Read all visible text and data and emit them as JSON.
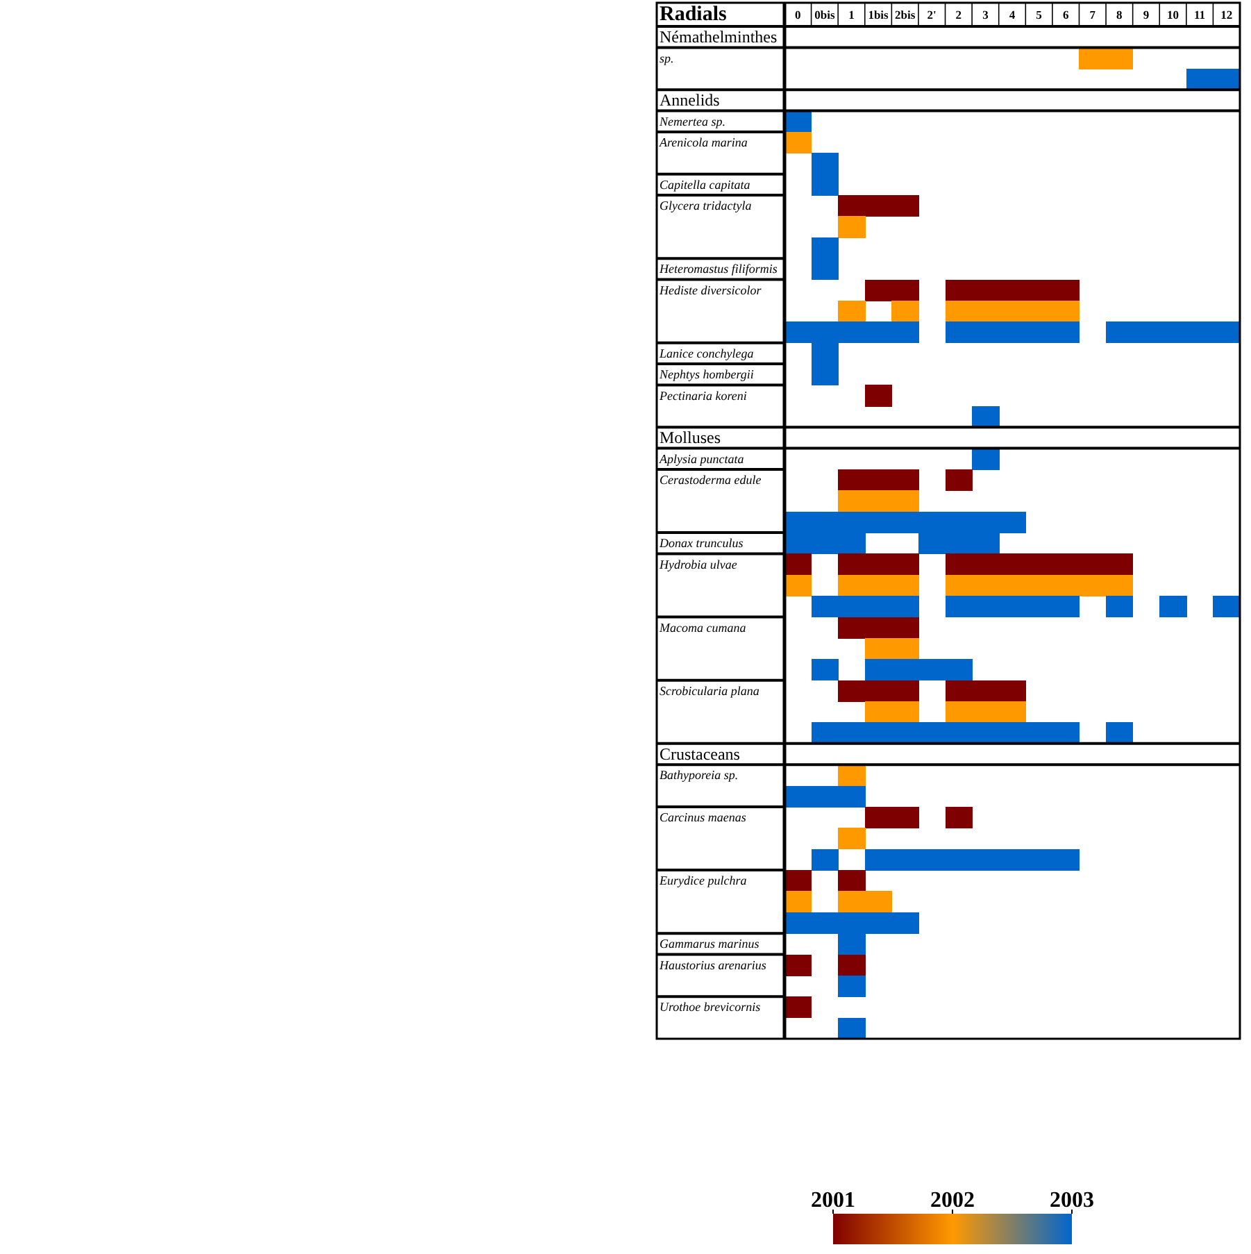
{
  "chart_data": {
    "type": "heatmap",
    "xlabel": "Radials",
    "categories": [
      "0",
      "0bis",
      "1",
      "1bis",
      "2bis",
      "2'",
      "2",
      "3",
      "4",
      "5",
      "6",
      "7",
      "8",
      "9",
      "10",
      "11",
      "12"
    ],
    "y_categories": [
      "Némathelminthes",
      "sp.",
      null,
      "Annelids",
      "Nemertea sp.",
      "Arenicola marina",
      null,
      "Capitella capitata",
      "Glycera tridactyla",
      null,
      null,
      "Heteromastus filiformis",
      "Hediste diversicolor",
      null,
      null,
      "Lanice conchylega",
      "Nephtys hombergii",
      "Pectinaria koreni",
      null,
      "Molluses",
      "Aplysia punctata",
      "Cerastoderma edule",
      null,
      null,
      "Donax trunculus",
      "Hydrobia ulvae",
      null,
      null,
      "Macoma cumana",
      null,
      null,
      "Scrobicularia plana",
      null,
      null,
      "Crustaceans",
      "Bathyporeia sp.",
      null,
      "Carcinus maenas",
      null,
      null,
      "Eurydice pulchra",
      null,
      null,
      "Gammarus marinus",
      "Haustorius arenarius",
      null,
      "Urothoe brevicornis",
      null
    ],
    "cells": [
      [
        null,
        null,
        null,
        null,
        null,
        null,
        null,
        null,
        null,
        null,
        null,
        null,
        null,
        null,
        null,
        null,
        null
      ],
      [
        null,
        null,
        null,
        null,
        null,
        null,
        null,
        null,
        null,
        null,
        null,
        2002,
        2002,
        null,
        null,
        null,
        null
      ],
      [
        null,
        null,
        null,
        null,
        null,
        null,
        null,
        null,
        null,
        null,
        null,
        null,
        null,
        null,
        null,
        2003,
        2003
      ],
      [
        null,
        null,
        null,
        null,
        null,
        null,
        null,
        null,
        null,
        null,
        null,
        null,
        null,
        null,
        null,
        null,
        null
      ],
      [
        2003,
        null,
        null,
        null,
        null,
        null,
        null,
        null,
        null,
        null,
        null,
        null,
        null,
        null,
        null,
        null,
        null
      ],
      [
        2002,
        null,
        null,
        null,
        null,
        null,
        null,
        null,
        null,
        null,
        null,
        null,
        null,
        null,
        null,
        null,
        null
      ],
      [
        null,
        2003,
        null,
        null,
        null,
        null,
        null,
        null,
        null,
        null,
        null,
        null,
        null,
        null,
        null,
        null,
        null
      ],
      [
        null,
        2003,
        null,
        null,
        null,
        null,
        null,
        null,
        null,
        null,
        null,
        null,
        null,
        null,
        null,
        null,
        null
      ],
      [
        null,
        null,
        2001,
        2001,
        2001,
        null,
        null,
        null,
        null,
        null,
        null,
        null,
        null,
        null,
        null,
        null,
        null
      ],
      [
        null,
        null,
        2002,
        null,
        null,
        null,
        null,
        null,
        null,
        null,
        null,
        null,
        null,
        null,
        null,
        null,
        null
      ],
      [
        null,
        2003,
        null,
        null,
        null,
        null,
        null,
        null,
        null,
        null,
        null,
        null,
        null,
        null,
        null,
        null,
        null
      ],
      [
        null,
        2003,
        null,
        null,
        null,
        null,
        null,
        null,
        null,
        null,
        null,
        null,
        null,
        null,
        null,
        null,
        null
      ],
      [
        null,
        null,
        null,
        2001,
        2001,
        null,
        2001,
        2001,
        2001,
        2001,
        2001,
        null,
        null,
        null,
        null,
        null,
        null
      ],
      [
        null,
        null,
        2002,
        null,
        2002,
        null,
        2002,
        2002,
        2002,
        2002,
        2002,
        null,
        null,
        null,
        null,
        null,
        null
      ],
      [
        2003,
        2003,
        2003,
        2003,
        2003,
        null,
        2003,
        2003,
        2003,
        2003,
        2003,
        null,
        2003,
        2003,
        2003,
        2003,
        2003
      ],
      [
        null,
        2003,
        null,
        null,
        null,
        null,
        null,
        null,
        null,
        null,
        null,
        null,
        null,
        null,
        null,
        null,
        null
      ],
      [
        null,
        2003,
        null,
        null,
        null,
        null,
        null,
        null,
        null,
        null,
        null,
        null,
        null,
        null,
        null,
        null,
        null
      ],
      [
        null,
        null,
        null,
        2001,
        null,
        null,
        null,
        null,
        null,
        null,
        null,
        null,
        null,
        null,
        null,
        null,
        null
      ],
      [
        null,
        null,
        null,
        null,
        null,
        null,
        null,
        2003,
        null,
        null,
        null,
        null,
        null,
        null,
        null,
        null,
        null
      ],
      [
        null,
        null,
        null,
        null,
        null,
        null,
        null,
        null,
        null,
        null,
        null,
        null,
        null,
        null,
        null,
        null,
        null
      ],
      [
        null,
        null,
        null,
        null,
        null,
        null,
        null,
        2003,
        null,
        null,
        null,
        null,
        null,
        null,
        null,
        null,
        null
      ],
      [
        null,
        null,
        2001,
        2001,
        2001,
        null,
        2001,
        null,
        null,
        null,
        null,
        null,
        null,
        null,
        null,
        null,
        null
      ],
      [
        null,
        null,
        2002,
        2002,
        2002,
        null,
        null,
        null,
        null,
        null,
        null,
        null,
        null,
        null,
        null,
        null,
        null
      ],
      [
        2003,
        2003,
        2003,
        2003,
        2003,
        2003,
        2003,
        2003,
        2003,
        null,
        null,
        null,
        null,
        null,
        null,
        null,
        null
      ],
      [
        2003,
        2003,
        2003,
        null,
        null,
        2003,
        2003,
        2003,
        null,
        null,
        null,
        null,
        null,
        null,
        null,
        null,
        null
      ],
      [
        2001,
        null,
        2001,
        2001,
        2001,
        null,
        2001,
        2001,
        2001,
        2001,
        2001,
        2001,
        2001,
        null,
        null,
        null,
        null
      ],
      [
        2002,
        null,
        2002,
        2002,
        2002,
        null,
        2002,
        2002,
        2002,
        2002,
        2002,
        2002,
        2002,
        null,
        null,
        null,
        null
      ],
      [
        null,
        2003,
        2003,
        2003,
        2003,
        null,
        2003,
        2003,
        2003,
        2003,
        2003,
        null,
        2003,
        null,
        2003,
        null,
        2003
      ],
      [
        null,
        null,
        2001,
        2001,
        2001,
        null,
        null,
        null,
        null,
        null,
        null,
        null,
        null,
        null,
        null,
        null,
        null
      ],
      [
        null,
        null,
        null,
        2002,
        2002,
        null,
        null,
        null,
        null,
        null,
        null,
        null,
        null,
        null,
        null,
        null,
        null
      ],
      [
        null,
        2003,
        null,
        2003,
        2003,
        2003,
        2003,
        null,
        null,
        null,
        null,
        null,
        null,
        null,
        null,
        null,
        null
      ],
      [
        null,
        null,
        2001,
        2001,
        2001,
        null,
        2001,
        2001,
        2001,
        null,
        null,
        null,
        null,
        null,
        null,
        null,
        null
      ],
      [
        null,
        null,
        null,
        2002,
        2002,
        null,
        2002,
        2002,
        2002,
        null,
        null,
        null,
        null,
        null,
        null,
        null,
        null
      ],
      [
        null,
        2003,
        2003,
        2003,
        2003,
        2003,
        2003,
        2003,
        2003,
        2003,
        2003,
        null,
        2003,
        null,
        null,
        null,
        null
      ],
      [
        null,
        null,
        null,
        null,
        null,
        null,
        null,
        null,
        null,
        null,
        null,
        null,
        null,
        null,
        null,
        null,
        null
      ],
      [
        null,
        null,
        2002,
        null,
        null,
        null,
        null,
        null,
        null,
        null,
        null,
        null,
        null,
        null,
        null,
        null,
        null
      ],
      [
        2003,
        2003,
        2003,
        null,
        null,
        null,
        null,
        null,
        null,
        null,
        null,
        null,
        null,
        null,
        null,
        null,
        null
      ],
      [
        null,
        null,
        null,
        2001,
        2001,
        null,
        2001,
        null,
        null,
        null,
        null,
        null,
        null,
        null,
        null,
        null,
        null
      ],
      [
        null,
        null,
        2002,
        null,
        null,
        null,
        null,
        null,
        null,
        null,
        null,
        null,
        null,
        null,
        null,
        null,
        null
      ],
      [
        null,
        2003,
        null,
        2003,
        2003,
        2003,
        2003,
        2003,
        2003,
        2003,
        2003,
        null,
        null,
        null,
        null,
        null,
        null
      ],
      [
        2001,
        null,
        2001,
        null,
        null,
        null,
        null,
        null,
        null,
        null,
        null,
        null,
        null,
        null,
        null,
        null,
        null
      ],
      [
        2002,
        null,
        2002,
        2002,
        null,
        null,
        null,
        null,
        null,
        null,
        null,
        null,
        null,
        null,
        null,
        null,
        null
      ],
      [
        2003,
        2003,
        2003,
        2003,
        2003,
        null,
        null,
        null,
        null,
        null,
        null,
        null,
        null,
        null,
        null,
        null,
        null
      ],
      [
        null,
        null,
        2003,
        null,
        null,
        null,
        null,
        null,
        null,
        null,
        null,
        null,
        null,
        null,
        null,
        null,
        null
      ],
      [
        2001,
        null,
        2001,
        null,
        null,
        null,
        null,
        null,
        null,
        null,
        null,
        null,
        null,
        null,
        null,
        null,
        null
      ],
      [
        null,
        null,
        2003,
        null,
        null,
        null,
        null,
        null,
        null,
        null,
        null,
        null,
        null,
        null,
        null,
        null,
        null
      ],
      [
        2001,
        null,
        null,
        null,
        null,
        null,
        null,
        null,
        null,
        null,
        null,
        null,
        null,
        null,
        null,
        null,
        null
      ],
      [
        null,
        null,
        2003,
        null,
        null,
        null,
        null,
        null,
        null,
        null,
        null,
        null,
        null,
        null,
        null,
        null,
        null
      ]
    ],
    "clim": [
      2001,
      2003
    ],
    "cticks": [
      2001,
      2002,
      2003
    ],
    "colors": [
      "#7f0000",
      "#ff9900",
      "#0066cc"
    ]
  }
}
